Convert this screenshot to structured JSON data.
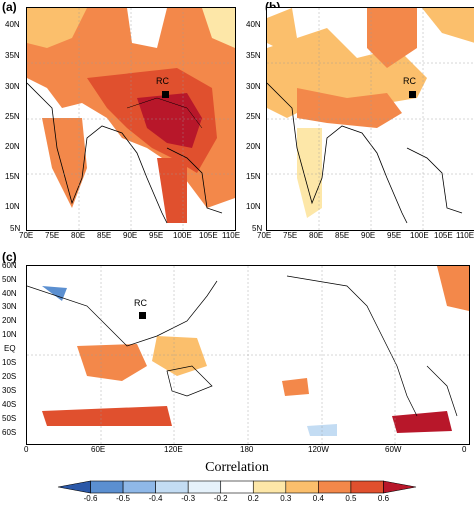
{
  "panels": {
    "a": {
      "label": "(a)",
      "rc_label": "RC",
      "lon_ticks": [
        "70E",
        "75E",
        "80E",
        "85E",
        "90E",
        "95E",
        "100E",
        "105E",
        "110E"
      ],
      "lat_ticks": [
        "40N",
        "35N",
        "30N",
        "25N",
        "20N",
        "15N",
        "10N",
        "5N"
      ]
    },
    "b": {
      "label": "(b)",
      "rc_label": "RC",
      "lon_ticks": [
        "70E",
        "75E",
        "80E",
        "85E",
        "90E",
        "95E",
        "100E",
        "105E",
        "110E"
      ],
      "lat_ticks": [
        "40N",
        "35N",
        "30N",
        "25N",
        "20N",
        "15N",
        "10N",
        "5N"
      ]
    },
    "c": {
      "label": "(c)",
      "rc_label": "RC",
      "lon_ticks": [
        "0",
        "60E",
        "120E",
        "180",
        "120W",
        "60W",
        "0"
      ],
      "lat_ticks": [
        "60N",
        "50N",
        "40N",
        "30N",
        "20N",
        "10N",
        "EQ",
        "10S",
        "20S",
        "30S",
        "40S",
        "50S",
        "60S"
      ]
    }
  },
  "colorbar": {
    "title": "Correlation",
    "labels": [
      "-0.6",
      "-0.5",
      "-0.4",
      "-0.3",
      "-0.2",
      "0.2",
      "0.3",
      "0.4",
      "0.5",
      "0.6"
    ],
    "colors": [
      "#2b58a8",
      "#5b8fd0",
      "#8fb8e8",
      "#c3dcf3",
      "#e6f2fb",
      "#ffffff",
      "#fde7a8",
      "#fbbf6c",
      "#f3884a",
      "#e0502e",
      "#b8172a"
    ]
  }
}
